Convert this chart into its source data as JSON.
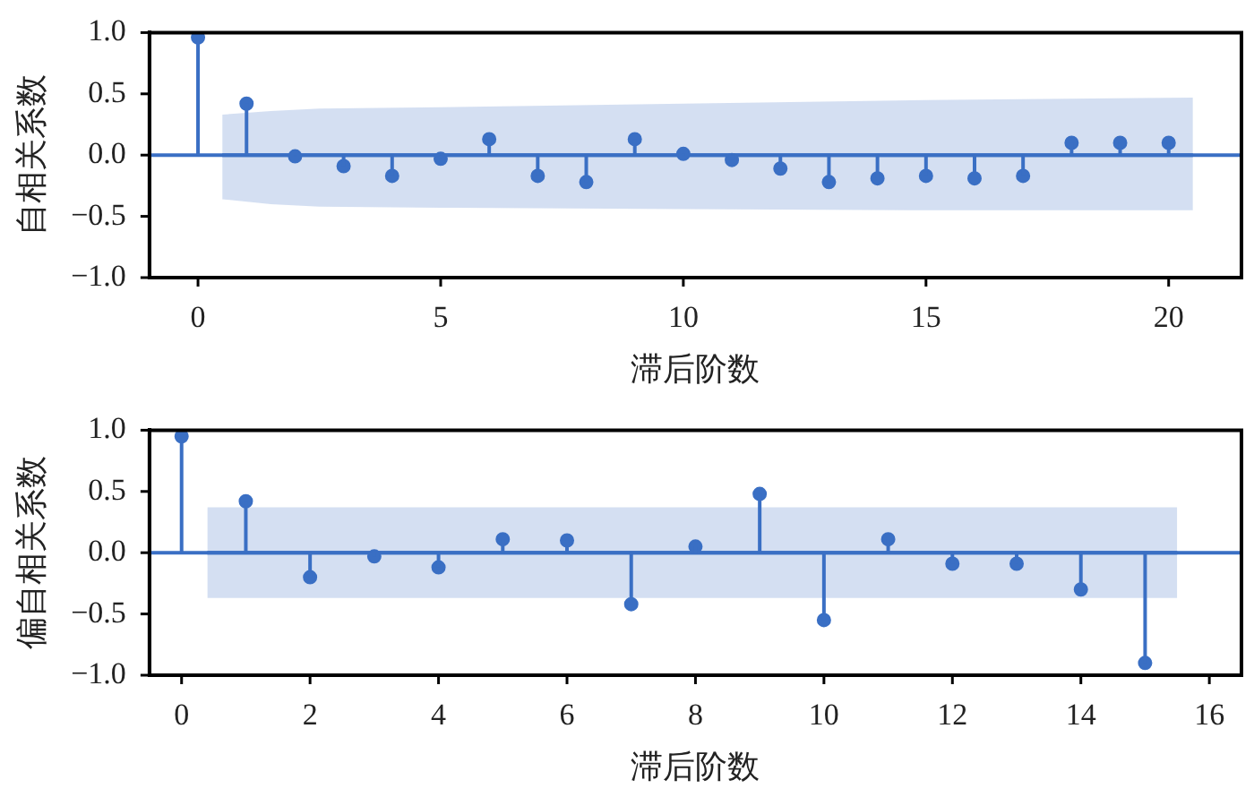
{
  "chart_data": [
    {
      "type": "lollipop",
      "xlabel": "滞后阶数",
      "ylabel": "自相关系数",
      "xlim": [
        -1,
        21.5
      ],
      "xticks": [
        0,
        5,
        10,
        15,
        20
      ],
      "ylim": [
        -1,
        1
      ],
      "yticks": [
        {
          "value": -1,
          "label": "−1.0"
        },
        {
          "value": -0.5,
          "label": "−0.5"
        },
        {
          "value": 0,
          "label": "0.0"
        },
        {
          "value": 0.5,
          "label": "0.5"
        },
        {
          "value": 1,
          "label": "1.0"
        }
      ],
      "grid": false,
      "legend": false,
      "marker": "circle",
      "ref_lines": [
        {
          "axis": "y",
          "value": 0,
          "color": "#3a6fc4"
        }
      ],
      "series": [
        {
          "color": "#3a6fc4",
          "x": [
            0,
            1,
            2,
            3,
            4,
            5,
            6,
            7,
            8,
            9,
            10,
            11,
            12,
            13,
            14,
            15,
            16,
            17,
            18,
            19,
            20
          ],
          "values": [
            0.96,
            0.42,
            -0.01,
            -0.09,
            -0.17,
            -0.03,
            0.13,
            -0.17,
            -0.22,
            0.13,
            0.01,
            -0.04,
            -0.11,
            -0.22,
            -0.19,
            -0.17,
            -0.19,
            -0.17,
            0.1,
            0.1,
            0.1
          ]
        },
        {
          "type": "line",
          "marker": "none",
          "color": "#3a6fc4",
          "x": [
            0.5,
            1.5,
            2.5,
            5,
            10,
            15,
            20.5
          ],
          "values": [
            0,
            0,
            0,
            0,
            0,
            0,
            0
          ],
          "lower": [
            -0.36,
            -0.4,
            -0.42,
            -0.43,
            -0.44,
            -0.45,
            -0.45
          ],
          "upper": [
            0.33,
            0.36,
            0.38,
            0.39,
            0.42,
            0.45,
            0.47
          ]
        }
      ]
    },
    {
      "type": "lollipop",
      "xlabel": "滞后阶数",
      "ylabel": "偏自相关系数",
      "xlim": [
        -0.5,
        16.5
      ],
      "xticks": [
        0,
        2,
        4,
        6,
        8,
        10,
        12,
        14,
        16
      ],
      "ylim": [
        -1,
        1
      ],
      "yticks": [
        {
          "value": -1,
          "label": "−1.0"
        },
        {
          "value": -0.5,
          "label": "−0.5"
        },
        {
          "value": 0,
          "label": "0.0"
        },
        {
          "value": 0.5,
          "label": "0.5"
        },
        {
          "value": 1,
          "label": "1.0"
        }
      ],
      "grid": false,
      "legend": false,
      "marker": "circle",
      "ref_lines": [
        {
          "axis": "y",
          "value": 0,
          "color": "#3a6fc4"
        }
      ],
      "series": [
        {
          "color": "#3a6fc4",
          "x": [
            0,
            1,
            2,
            3,
            4,
            5,
            6,
            7,
            8,
            9,
            10,
            11,
            12,
            13,
            14,
            15
          ],
          "values": [
            0.95,
            0.42,
            -0.2,
            -0.03,
            -0.12,
            0.11,
            0.1,
            -0.42,
            0.05,
            0.48,
            -0.55,
            0.11,
            -0.09,
            -0.09,
            -0.3,
            -0.9
          ]
        },
        {
          "type": "line",
          "marker": "none",
          "color": "#3a6fc4",
          "x": [
            0.4,
            15.5
          ],
          "values": [
            0,
            0
          ],
          "lower": [
            -0.37,
            -0.37
          ],
          "upper": [
            0.37,
            0.37
          ]
        }
      ]
    }
  ]
}
